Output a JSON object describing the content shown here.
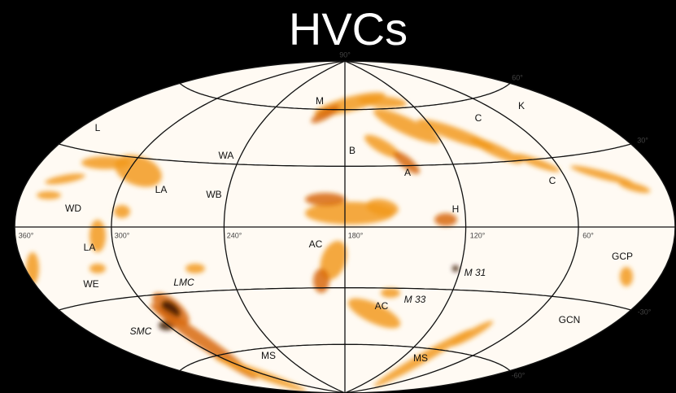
{
  "title": "HVCs",
  "grid_labels": [
    "90°",
    "60°",
    "30°",
    "360°",
    "300°",
    "240°",
    "180°",
    "120°",
    "60°",
    "-30°",
    "-60°"
  ],
  "regions": [
    "M",
    "K",
    "C",
    "L",
    "WA",
    "B",
    "A",
    "C",
    "LA",
    "WB",
    "WD",
    "H",
    "LA",
    "AC",
    "M 31",
    "WE",
    "LMC",
    "GCP",
    "AC",
    "M 33",
    "SMC",
    "GCN",
    "MS",
    "MS"
  ]
}
